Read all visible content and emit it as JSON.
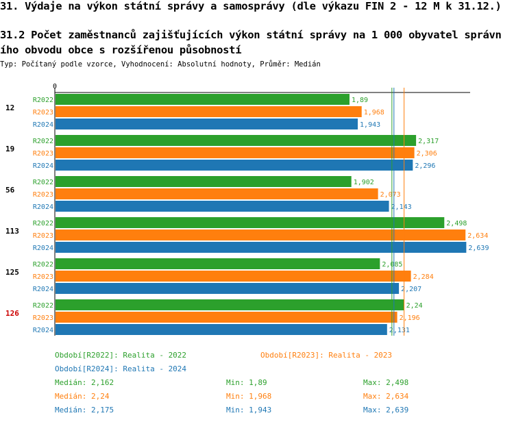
{
  "header": {
    "title": "31. Výdaje na výkon státní správy a samosprávy (dle výkazu FIN 2 - 12 M k 31.12.)",
    "subtitle_line1": "31.2 Počet zaměstnanců zajišťujících výkon státní správy na 1 000 obyvatel správn",
    "subtitle_line2": "ího obvodu obce s rozšířenou působností",
    "meta": "Typ: Počítaný podle vzorce, Vyhodnocení: Absolutní hodnoty, Průměr: Medián"
  },
  "colors": {
    "R2022": "#2ca02c",
    "R2023": "#ff7f0e",
    "R2024": "#1f77b4",
    "highlight": "#cc0000"
  },
  "chart_data": {
    "type": "bar",
    "orientation": "horizontal",
    "x_tick_label": "0",
    "xlim": [
      0,
      2.75
    ],
    "categories": [
      "12",
      "19",
      "56",
      "113",
      "125",
      "126"
    ],
    "highlighted_category": "126",
    "series": [
      {
        "name": "R2022",
        "values": [
          1.89,
          2.317,
          1.902,
          2.498,
          2.085,
          2.24
        ],
        "labels": [
          "1,89",
          "2,317",
          "1,902",
          "2,498",
          "2,085",
          "2,24"
        ]
      },
      {
        "name": "R2023",
        "values": [
          1.968,
          2.306,
          2.073,
          2.634,
          2.284,
          2.196
        ],
        "labels": [
          "1,968",
          "2,306",
          "2,073",
          "2,634",
          "2,284",
          "2,196"
        ]
      },
      {
        "name": "R2024",
        "values": [
          1.943,
          2.296,
          2.143,
          2.639,
          2.207,
          2.131
        ],
        "labels": [
          "1,943",
          "2,296",
          "2,143",
          "2,639",
          "2,207",
          "2,131"
        ]
      }
    ],
    "median_lines": {
      "R2022": 2.162,
      "R2023": 2.24,
      "R2024": 2.175
    }
  },
  "legend": {
    "r2022": "Období[R2022]: Realita - 2022",
    "r2023": "Období[R2023]: Realita - 2023",
    "r2024": "Období[R2024]: Realita - 2024"
  },
  "stats": {
    "r2022": {
      "median": "Medián: 2,162",
      "min": "Min: 1,89",
      "max": "Max: 2,498"
    },
    "r2023": {
      "median": "Medián: 2,24",
      "min": "Min: 1,968",
      "max": "Max: 2,634"
    },
    "r2024": {
      "median": "Medián: 2,175",
      "min": "Min: 1,943",
      "max": "Max: 2,639"
    }
  }
}
